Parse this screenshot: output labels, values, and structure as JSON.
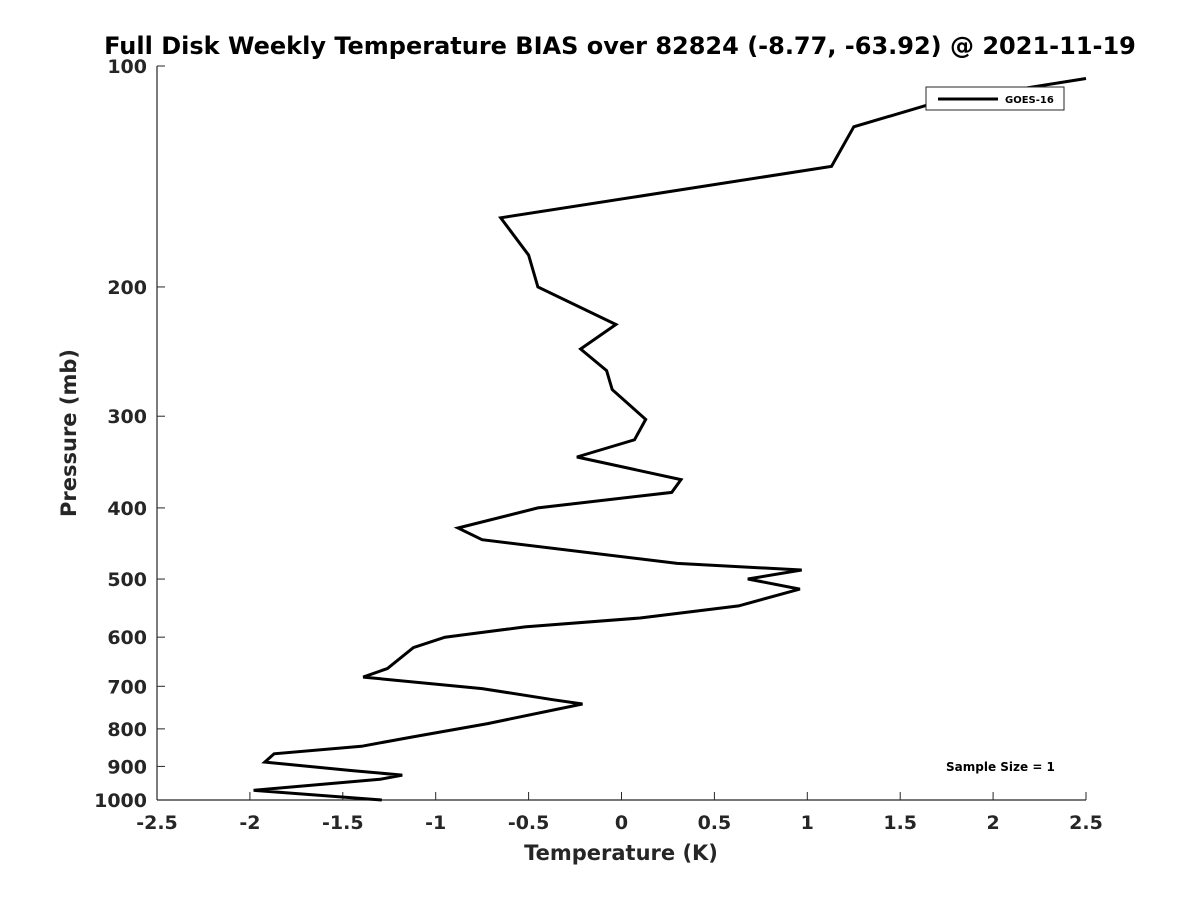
{
  "chart_data": {
    "type": "line",
    "title": "Full Disk Weekly Temperature BIAS over 82824 (-8.77, -63.92) @ 2021-11-19",
    "xlabel": "Temperature (K)",
    "ylabel": "Pressure (mb)",
    "xlim": [
      -2.5,
      2.5
    ],
    "ylim": [
      100,
      1000
    ],
    "y_scale": "log",
    "y_reversed": true,
    "grid": false,
    "legend_position": "top-right",
    "x_ticks": [
      -2.5,
      -2,
      -1.5,
      -1,
      -0.5,
      0,
      0.5,
      1,
      1.5,
      2,
      2.5
    ],
    "x_tick_labels": [
      "-2.5",
      "-2",
      "-1.5",
      "-1",
      "-0.5",
      "0",
      "0.5",
      "1",
      "1.5",
      "2",
      "2.5"
    ],
    "y_ticks": [
      100,
      200,
      300,
      400,
      500,
      600,
      700,
      800,
      900,
      1000
    ],
    "y_tick_labels": [
      "100",
      "200",
      "300",
      "400",
      "500",
      "600",
      "700",
      "800",
      "900",
      "1000"
    ],
    "annotation": "Sample Size = 1",
    "series": [
      {
        "name": "GOES-16",
        "color": "#000000",
        "points": [
          [
            2.5,
            104
          ],
          [
            1.7,
            112
          ],
          [
            1.25,
            121
          ],
          [
            1.13,
            137
          ],
          [
            -0.65,
            161
          ],
          [
            -0.5,
            181
          ],
          [
            -0.45,
            200
          ],
          [
            -0.03,
            225
          ],
          [
            -0.22,
            243
          ],
          [
            -0.08,
            260
          ],
          [
            -0.05,
            276
          ],
          [
            0.13,
            303
          ],
          [
            0.07,
            323
          ],
          [
            -0.24,
            341
          ],
          [
            0.32,
            366
          ],
          [
            0.27,
            381
          ],
          [
            -0.45,
            400
          ],
          [
            -0.88,
            426
          ],
          [
            -0.75,
            442
          ],
          [
            0.3,
            476
          ],
          [
            0.97,
            486
          ],
          [
            0.68,
            500
          ],
          [
            0.96,
            516
          ],
          [
            0.63,
            544
          ],
          [
            0.1,
            565
          ],
          [
            -0.52,
            581
          ],
          [
            -0.95,
            600
          ],
          [
            -1.12,
            620
          ],
          [
            -1.26,
            662
          ],
          [
            -1.39,
            680
          ],
          [
            -0.75,
            705
          ],
          [
            -0.37,
            730
          ],
          [
            -0.21,
            740
          ],
          [
            -0.72,
            787
          ],
          [
            -1.13,
            821
          ],
          [
            -1.4,
            845
          ],
          [
            -1.87,
            865
          ],
          [
            -1.92,
            888
          ],
          [
            -1.45,
            912
          ],
          [
            -1.18,
            925
          ],
          [
            -1.3,
            937
          ],
          [
            -1.98,
            970
          ],
          [
            -1.29,
            1000
          ]
        ]
      }
    ]
  }
}
